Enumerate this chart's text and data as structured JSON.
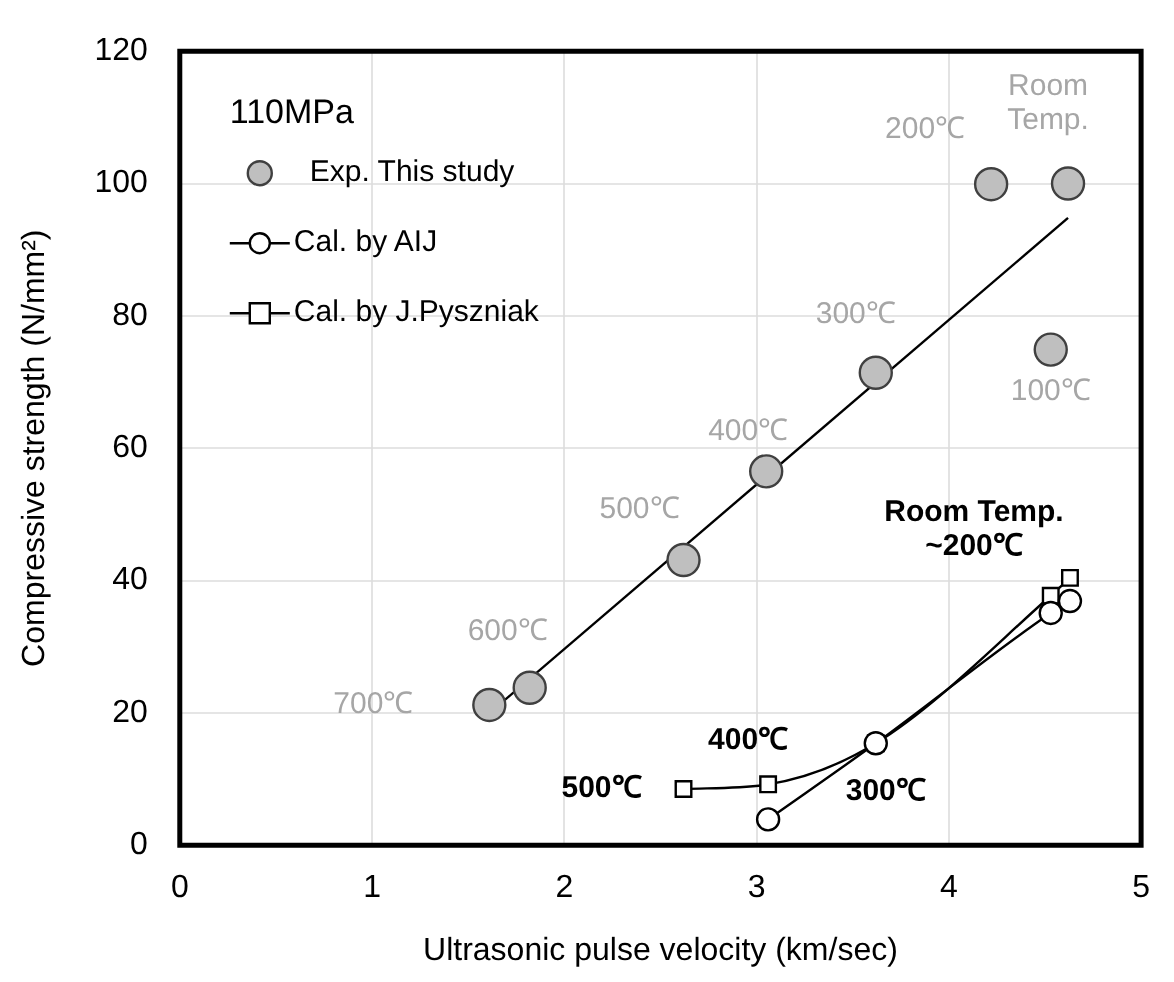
{
  "chart_data": {
    "type": "scatter",
    "xlabel": "Ultrasonic pulse velocity (km/sec)",
    "ylabel": "Compressive strength (N/mm²)",
    "legend_title": "110MPa",
    "legend": "top left",
    "grid": true,
    "xlim": [
      0,
      5
    ],
    "xticks": [
      0,
      1,
      2,
      3,
      4,
      5
    ],
    "ylim": [
      0,
      120
    ],
    "yticks": [
      0,
      20,
      40,
      60,
      80,
      100,
      120
    ],
    "series": [
      {
        "name": "Exp. This study",
        "type": "scatter",
        "marker": "circle",
        "color": "#bfbfbf",
        "x": [
          1.61,
          1.82,
          2.62,
          3.05,
          3.62,
          4.22,
          4.62,
          4.53
        ],
        "values": [
          21.2,
          23.8,
          43.1,
          56.5,
          71.4,
          99.9,
          100,
          74.9
        ]
      },
      {
        "type": "line",
        "marker": "none",
        "color": "#000000",
        "x": [
          1.62,
          4.62
        ],
        "values": [
          20.2,
          94.8
        ]
      },
      {
        "name": "Cal. by AIJ",
        "type": "line",
        "marker": "circle",
        "color": "#000000",
        "x": [
          3.06,
          3.62,
          4.53,
          4.63
        ],
        "values": [
          3.9,
          15.4,
          35.1,
          36.9
        ]
      },
      {
        "name": "Cal. by J.Pyszniak",
        "type": "line",
        "marker": "square",
        "color": "#000000",
        "x": [
          2.62,
          3.06,
          3.62,
          4.53,
          4.63
        ],
        "values": [
          8.5,
          9.2,
          15.4,
          37.7,
          40.4
        ]
      }
    ],
    "annotations": [
      {
        "text": "700℃",
        "x": 1.61,
        "y": 21.2
      },
      {
        "text": "600℃",
        "x": 1.82,
        "y": 23.8
      },
      {
        "text": "500℃",
        "x": 2.62,
        "y": 43.1
      },
      {
        "text": "400℃",
        "x": 3.05,
        "y": 56.5
      },
      {
        "text": "300℃",
        "x": 3.62,
        "y": 71.4
      },
      {
        "text": "200℃",
        "x": 4.22,
        "y": 99.9
      },
      {
        "text": "Room\nTemp.",
        "x": 4.62,
        "y": 100
      },
      {
        "text": "100℃",
        "x": 4.53,
        "y": 74.9
      },
      {
        "text": "400℃",
        "x": 3.06,
        "y": 9.2
      },
      {
        "text": "500℃",
        "x": 2.62,
        "y": 8.5
      },
      {
        "text": "300℃",
        "x": 3.62,
        "y": 15.4
      },
      {
        "text": "Room Temp.\n~200℃",
        "x": 4.63,
        "y": 40.4
      }
    ]
  }
}
